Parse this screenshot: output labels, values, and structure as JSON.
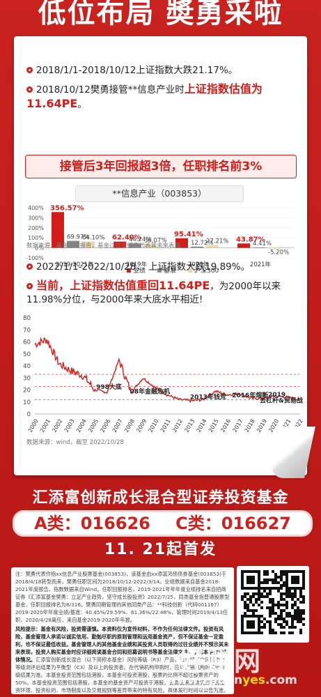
{
  "hero_title": "低位布局 奬勇采啦",
  "points": [
    {
      "text": "2018/1/1-2018/10/12上证指数大跌21.17%。"
    },
    {
      "text_plain": "2018/10/12樊勇接管**信息产业时",
      "text_red": "上证指数估值为11.64PE",
      "text_tail": "。"
    }
  ],
  "banner": "接管后3年回报超3倍，任职排名前3%",
  "fund_label": "**信息产业（003853）",
  "bar_chart_data": {
    "type": "bar",
    "categories": [
      "2019-2021年",
      "2019年",
      "2020年",
      "2021年"
    ],
    "series": [
      {
        "name": "业绩",
        "values": [
          356.57,
          62.4,
          95.41,
          43.87
        ],
        "color": "#d21e1b"
      },
      {
        "name": "基准",
        "values": [
          69.97,
          44.24,
          12.72,
          4.41
        ],
        "color": "#888888"
      },
      {
        "name": "沪深300",
        "values": [
          64.1,
          36.07,
          27.21,
          -5.2
        ],
        "color": "#e8d9b0"
      }
    ],
    "labels": [
      [
        "356.57%",
        "69.97%",
        "64.10%"
      ],
      [
        "62.40%",
        "44.24%",
        "36.07%"
      ],
      [
        "95.41%",
        "12.72%",
        "27.21%"
      ],
      [
        "43.87%",
        "4.41%",
        "-5.20%"
      ]
    ],
    "yticks": [
      "400%",
      "300%",
      "200%",
      "100%",
      "0%",
      "-100%"
    ],
    "ylim": [
      -100,
      400
    ]
  },
  "src1": "数据来源：基金定期报告，基金过往业绩不代表其未来表现",
  "point3": "2022/1/1-2022/10/28，    上证指数大跌19.89%。",
  "point4_red": "当前，上证指数估值重回11.64PE",
  "point4_tail": "，为2000年以来11.98%分位，与2000年来大底水平相近!",
  "chart_data": {
    "type": "line",
    "x": [
      "2000",
      "2001",
      "2002",
      "2003",
      "2004",
      "2005",
      "2006",
      "2007",
      "2008",
      "2009",
      "2010",
      "2011",
      "2012",
      "2013",
      "2014",
      "2015",
      "2016",
      "2017",
      "2018",
      "2019",
      "2020",
      "2021",
      "2022"
    ],
    "yticks": [
      "80",
      "70",
      "60",
      "50",
      "40",
      "30",
      "20",
      "10",
      "0"
    ],
    "ylim": [
      0,
      80
    ],
    "values": [
      58,
      62,
      42,
      36,
      32,
      20,
      18,
      45,
      18,
      30,
      22,
      16,
      12,
      11,
      12,
      19,
      16,
      17,
      13,
      13,
      15,
      14,
      12
    ],
    "ref_lines": [
      33,
      23,
      12
    ],
    "annotations": [
      "998大底",
      "08年金融危机",
      "2013年钱荒",
      "2016年熔断",
      "2019",
      "去杠杆&贸易战"
    ]
  },
  "src2": "数据来源：wind，截至 2022/10/28",
  "fund_name": "汇添富创新成长混合型证券投资基金",
  "code_a": "A类：016626",
  "code_c": "C类：016627",
  "launch": "11. 21起首发",
  "fine_print": {
    "p1": "注：樊勇代表作指xx信息产业股票基金(003853)，该基金由xx添富鸿债债券基金(003853)于2018/4/18转型而来，樊勇任职区间为2018/10/12-2022/3/14。业绩数据来自基金2018-2021年度报告，指数数据来自Wind。任职回报排名，2019-2021年年年度业绩排名来自招商证券《汇添富基金樊勇：立足产业趋势，坚守成长股投资》2022/7/25，同类基金指普通股票型基金，任职回报排名为8/316。樊勇同期管理的其他同类产品：**科技创新（代码001167）2019-2020年年度业绩/基准：40.45%/29.59%、61.36%/22.48%，管理时间2019/4/13任职，2020/4/28离任，来自基金2019-2020年年报。",
    "p2_bold": "风险提示：基金有风险，投资需谨慎。本资料仅为宣传材料，不作为任何法律文件。投资有风险，基金管理人承诺以诚实信用、勤勉尽职的原则管理和运用基金资产，但不保证基金一定盈利，也不保证最低收益。基金管理人的其他基金业绩和其投资人员取得的过往业绩并不预示其未来表现，投资人购买基金时应详细阅读基金合同和招募说明书等基金法律文件，了解本基金的具体情况。",
    "p3": "汇添富创新成长混合（以下简称本基金）风险等级（R3）产品，适合经客户风险承受等级测评后结果为平衡型（C3）及以上的投资者。在代销机构申购时，应以代销机构的风险评级结果为准。本基金投资范围包括港股，本基金可投资港股，股票的比例不超过股票资产的50%。本基金投资范围包括港股，本基金的基金资产可投资于港股，会面临港股通机制下因投资环境、投资标的、市场制度以及交易规则等差异带来的特有风险。具体发行时间以公告为准。"
  },
  "watermark": {
    "cn": "好赚网",
    "pre": "www.zhuan",
    "yes": "yes",
    "post": ".com"
  }
}
